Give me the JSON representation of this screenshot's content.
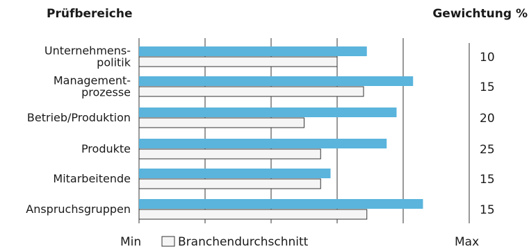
{
  "header": {
    "left_title": "Prüfbereiche",
    "right_title": "Gewichtung %"
  },
  "chart_data": {
    "type": "bar",
    "orientation": "horizontal",
    "categories": [
      [
        "Unternehmens-",
        "politik"
      ],
      [
        "Management-",
        "prozesse"
      ],
      [
        "Betrieb/Produktion"
      ],
      [
        "Produkte"
      ],
      [
        "Mitarbeitende"
      ],
      [
        "Anspruchsgruppen"
      ]
    ],
    "series": [
      {
        "values": [
          69,
          83,
          78,
          75,
          58,
          86
        ],
        "color": "#5ab4dc"
      },
      {
        "name": "Branchendurchschnitt",
        "values": [
          60,
          68,
          50,
          55,
          55,
          69
        ],
        "color": "#f5f5f5"
      }
    ],
    "weights": [
      "10",
      "15",
      "20",
      "25",
      "15",
      "15"
    ],
    "xlim": [
      0,
      100
    ],
    "x_min_label": "Min",
    "x_max_label": "Max",
    "grid": true
  }
}
